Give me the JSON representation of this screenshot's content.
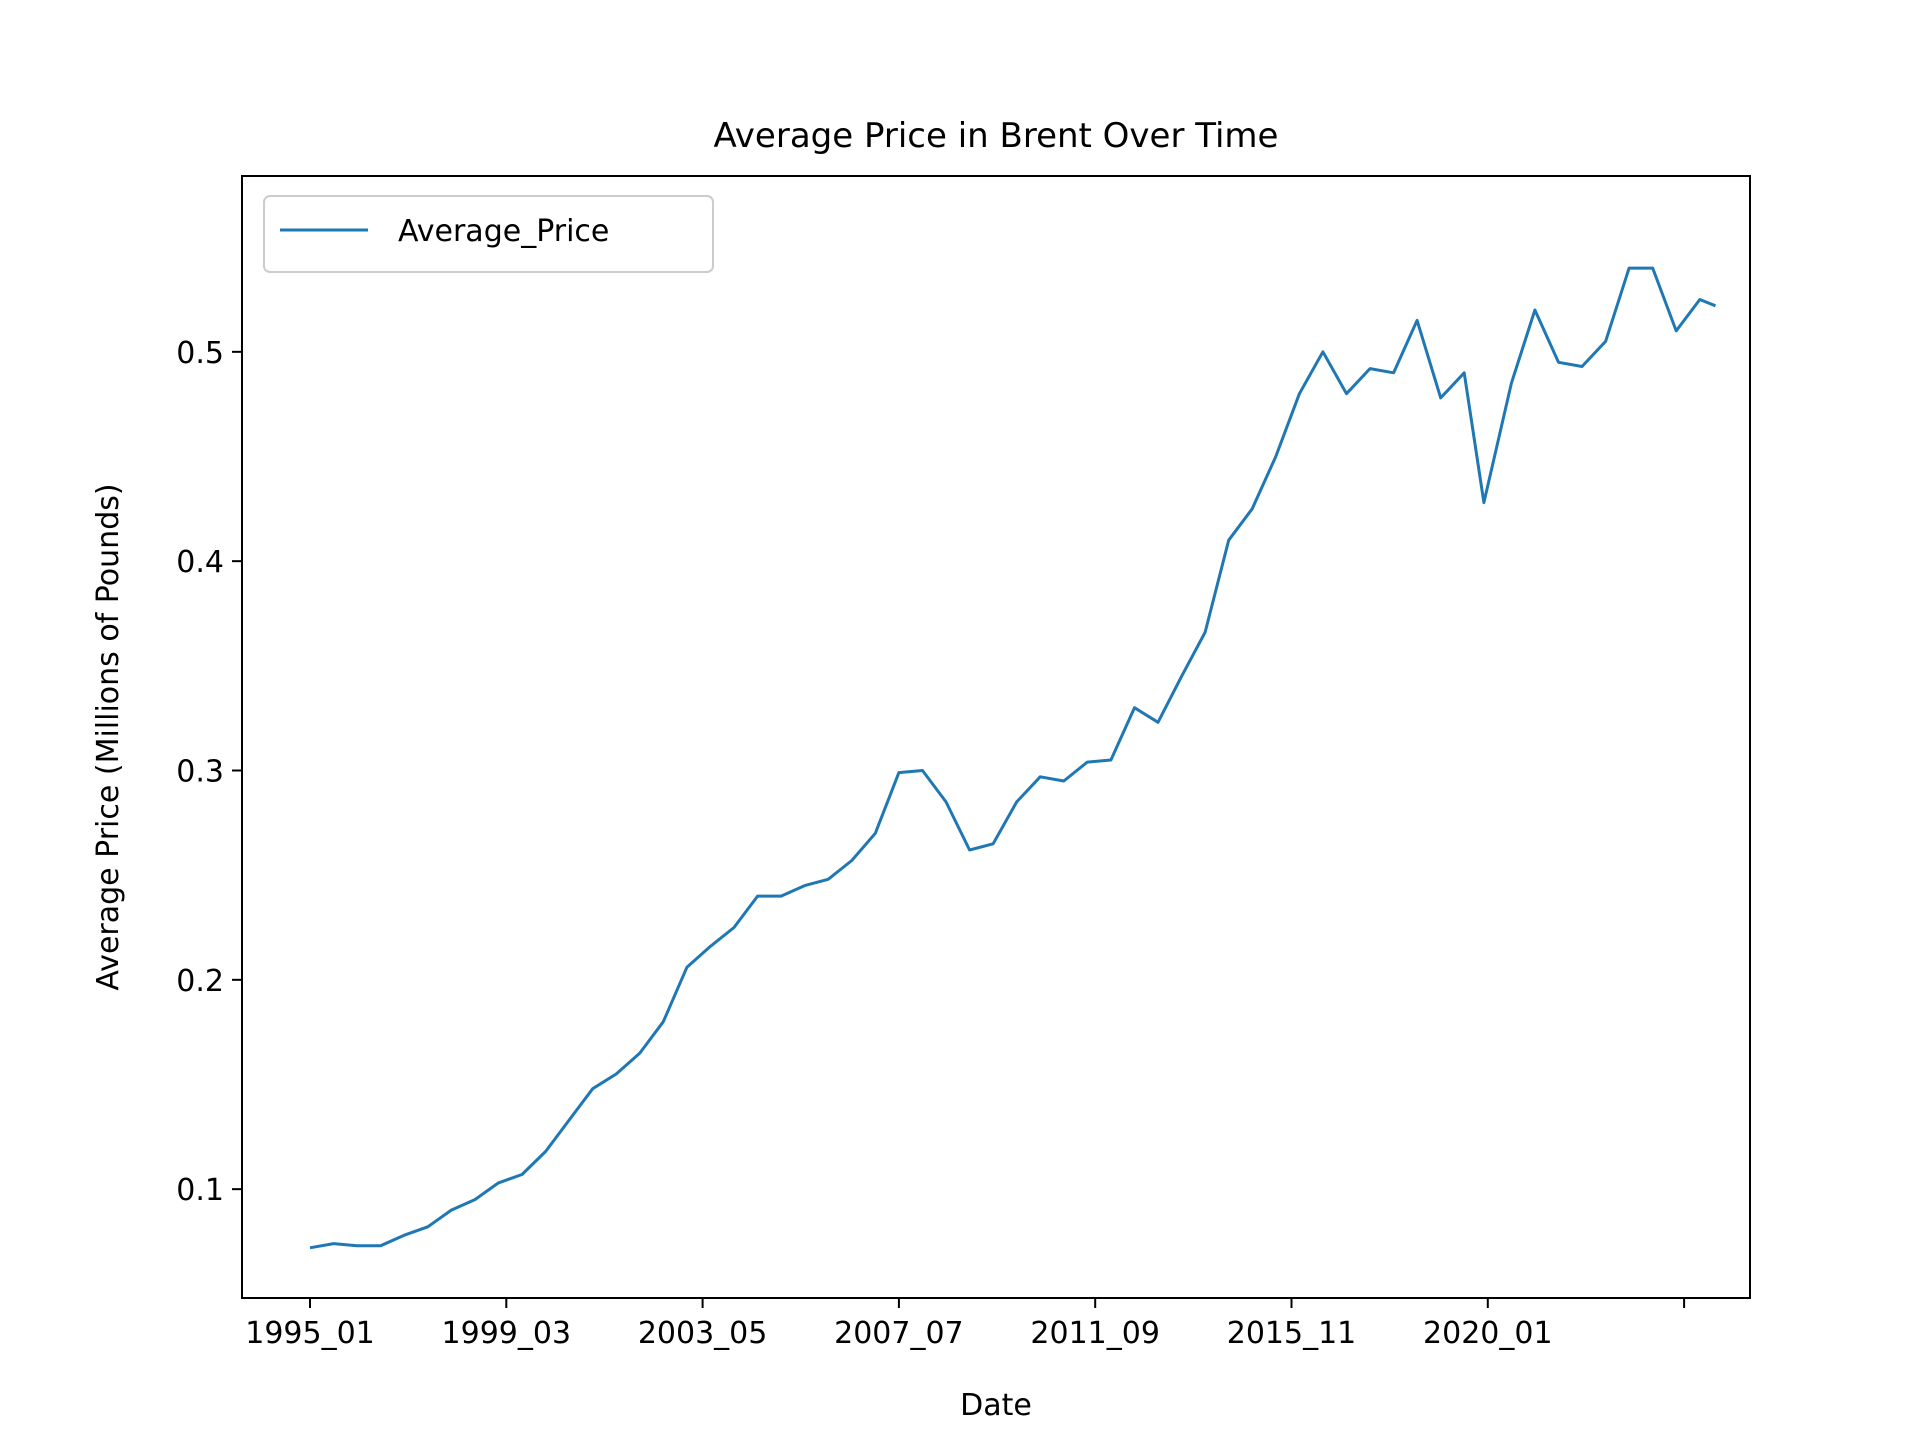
{
  "chart_data": {
    "type": "line",
    "title": "Average Price in Brent Over Time",
    "xlabel": "Date",
    "ylabel": "Average Price (Millions of Pounds)",
    "x_tick_labels": [
      "1995_01",
      "1999_03",
      "2003_05",
      "2007_07",
      "2011_09",
      "2015_11",
      "2020_01",
      ""
    ],
    "y_ticks": [
      0.1,
      0.2,
      0.3,
      0.4,
      0.5
    ],
    "y_tick_labels": [
      "0.1",
      "0.2",
      "0.3",
      "0.4",
      "0.5"
    ],
    "ylim": [
      0.048,
      0.584
    ],
    "grid": false,
    "legend": {
      "entries": [
        "Average_Price"
      ],
      "placement": "top-left"
    },
    "colors": {
      "line": "#1f77b4"
    },
    "series": [
      {
        "name": "Average_Price",
        "points": [
          [
            "1995-01",
            0.072
          ],
          [
            "1995-07",
            0.074
          ],
          [
            "1996-01",
            0.073
          ],
          [
            "1996-07",
            0.073
          ],
          [
            "1997-01",
            0.078
          ],
          [
            "1997-07",
            0.082
          ],
          [
            "1998-01",
            0.09
          ],
          [
            "1998-07",
            0.095
          ],
          [
            "1999-01",
            0.103
          ],
          [
            "1999-07",
            0.107
          ],
          [
            "2000-01",
            0.118
          ],
          [
            "2000-07",
            0.133
          ],
          [
            "2001-01",
            0.148
          ],
          [
            "2001-07",
            0.155
          ],
          [
            "2002-01",
            0.165
          ],
          [
            "2002-07",
            0.18
          ],
          [
            "2003-01",
            0.206
          ],
          [
            "2003-07",
            0.216
          ],
          [
            "2004-01",
            0.225
          ],
          [
            "2004-07",
            0.24
          ],
          [
            "2005-01",
            0.24
          ],
          [
            "2005-07",
            0.245
          ],
          [
            "2006-01",
            0.248
          ],
          [
            "2006-07",
            0.257
          ],
          [
            "2007-01",
            0.27
          ],
          [
            "2007-07",
            0.299
          ],
          [
            "2008-01",
            0.3
          ],
          [
            "2008-07",
            0.285
          ],
          [
            "2009-01",
            0.262
          ],
          [
            "2009-07",
            0.265
          ],
          [
            "2010-01",
            0.285
          ],
          [
            "2010-07",
            0.297
          ],
          [
            "2011-01",
            0.295
          ],
          [
            "2011-07",
            0.304
          ],
          [
            "2012-01",
            0.305
          ],
          [
            "2012-07",
            0.33
          ],
          [
            "2013-01",
            0.323
          ],
          [
            "2013-07",
            0.345
          ],
          [
            "2014-01",
            0.366
          ],
          [
            "2014-07",
            0.41
          ],
          [
            "2015-01",
            0.425
          ],
          [
            "2015-07",
            0.45
          ],
          [
            "2016-01",
            0.48
          ],
          [
            "2016-07",
            0.5
          ],
          [
            "2017-01",
            0.48
          ],
          [
            "2017-07",
            0.492
          ],
          [
            "2018-01",
            0.49
          ],
          [
            "2018-07",
            0.515
          ],
          [
            "2019-01",
            0.478
          ],
          [
            "2019-07",
            0.49
          ],
          [
            "2019-12",
            0.428
          ],
          [
            "2020-07",
            0.485
          ],
          [
            "2021-01",
            0.52
          ],
          [
            "2021-07",
            0.495
          ],
          [
            "2022-01",
            0.493
          ],
          [
            "2022-07",
            0.505
          ],
          [
            "2023-01",
            0.54
          ],
          [
            "2023-07",
            0.54
          ],
          [
            "2024-01",
            0.51
          ],
          [
            "2024-07",
            0.525
          ],
          [
            "2024-11",
            0.522
          ]
        ]
      }
    ]
  }
}
